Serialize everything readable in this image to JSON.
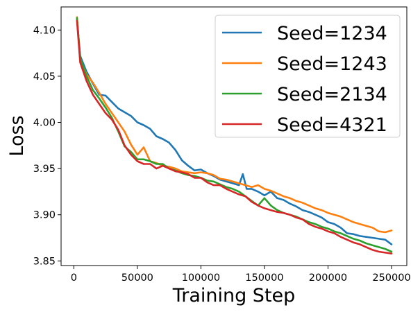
{
  "chart_data": {
    "type": "line",
    "title": "",
    "xlabel": "Training Step",
    "ylabel": "Loss",
    "xlim": [
      -10000,
      262000
    ],
    "ylim": [
      3.845,
      4.125
    ],
    "xticks": [
      0,
      50000,
      100000,
      150000,
      200000,
      250000
    ],
    "yticks": [
      3.85,
      3.9,
      3.95,
      4.0,
      4.05,
      4.1
    ],
    "ytick_labels": [
      "3.85",
      "3.90",
      "3.95",
      "4.00",
      "4.05",
      "4.10"
    ],
    "grid": false,
    "legend_position": "top-right",
    "series": [
      {
        "name": "Seed=1234",
        "color": "#1f77b4",
        "points": [
          [
            2500,
            4.112
          ],
          [
            5000,
            4.072
          ],
          [
            10000,
            4.055
          ],
          [
            15000,
            4.042
          ],
          [
            20000,
            4.03
          ],
          [
            25000,
            4.029
          ],
          [
            30000,
            4.022
          ],
          [
            35000,
            4.015
          ],
          [
            40000,
            4.011
          ],
          [
            45000,
            4.007
          ],
          [
            50000,
            4.0
          ],
          [
            55000,
            3.997
          ],
          [
            60000,
            3.993
          ],
          [
            65000,
            3.985
          ],
          [
            70000,
            3.982
          ],
          [
            75000,
            3.978
          ],
          [
            80000,
            3.97
          ],
          [
            85000,
            3.959
          ],
          [
            90000,
            3.953
          ],
          [
            95000,
            3.948
          ],
          [
            100000,
            3.949
          ],
          [
            105000,
            3.945
          ],
          [
            110000,
            3.942
          ],
          [
            115000,
            3.938
          ],
          [
            120000,
            3.936
          ],
          [
            125000,
            3.934
          ],
          [
            130000,
            3.932
          ],
          [
            133000,
            3.944
          ],
          [
            136000,
            3.928
          ],
          [
            140000,
            3.928
          ],
          [
            145000,
            3.925
          ],
          [
            150000,
            3.921
          ],
          [
            155000,
            3.925
          ],
          [
            160000,
            3.918
          ],
          [
            165000,
            3.916
          ],
          [
            170000,
            3.912
          ],
          [
            175000,
            3.909
          ],
          [
            180000,
            3.905
          ],
          [
            185000,
            3.903
          ],
          [
            190000,
            3.9
          ],
          [
            195000,
            3.897
          ],
          [
            200000,
            3.892
          ],
          [
            205000,
            3.89
          ],
          [
            210000,
            3.886
          ],
          [
            215000,
            3.88
          ],
          [
            220000,
            3.879
          ],
          [
            225000,
            3.877
          ],
          [
            230000,
            3.876
          ],
          [
            235000,
            3.875
          ],
          [
            240000,
            3.874
          ],
          [
            245000,
            3.873
          ],
          [
            250000,
            3.868
          ]
        ]
      },
      {
        "name": "Seed=1243",
        "color": "#ff7f0e",
        "points": [
          [
            2500,
            4.114
          ],
          [
            5000,
            4.068
          ],
          [
            10000,
            4.052
          ],
          [
            15000,
            4.043
          ],
          [
            20000,
            4.032
          ],
          [
            25000,
            4.02
          ],
          [
            30000,
            4.01
          ],
          [
            35000,
            4.0
          ],
          [
            40000,
            3.99
          ],
          [
            45000,
            3.976
          ],
          [
            50000,
            3.965
          ],
          [
            55000,
            3.973
          ],
          [
            60000,
            3.958
          ],
          [
            65000,
            3.956
          ],
          [
            70000,
            3.953
          ],
          [
            75000,
            3.952
          ],
          [
            80000,
            3.95
          ],
          [
            85000,
            3.947
          ],
          [
            90000,
            3.946
          ],
          [
            95000,
            3.945
          ],
          [
            100000,
            3.946
          ],
          [
            105000,
            3.945
          ],
          [
            110000,
            3.943
          ],
          [
            115000,
            3.939
          ],
          [
            120000,
            3.938
          ],
          [
            125000,
            3.936
          ],
          [
            130000,
            3.934
          ],
          [
            135000,
            3.932
          ],
          [
            140000,
            3.93
          ],
          [
            145000,
            3.932
          ],
          [
            150000,
            3.928
          ],
          [
            155000,
            3.926
          ],
          [
            160000,
            3.923
          ],
          [
            165000,
            3.92
          ],
          [
            170000,
            3.918
          ],
          [
            175000,
            3.915
          ],
          [
            180000,
            3.913
          ],
          [
            185000,
            3.91
          ],
          [
            190000,
            3.907
          ],
          [
            195000,
            3.905
          ],
          [
            200000,
            3.902
          ],
          [
            205000,
            3.9
          ],
          [
            210000,
            3.898
          ],
          [
            215000,
            3.895
          ],
          [
            220000,
            3.892
          ],
          [
            225000,
            3.89
          ],
          [
            230000,
            3.888
          ],
          [
            235000,
            3.886
          ],
          [
            240000,
            3.882
          ],
          [
            245000,
            3.881
          ],
          [
            250000,
            3.883
          ]
        ]
      },
      {
        "name": "Seed=2134",
        "color": "#2ca02c",
        "points": [
          [
            2500,
            4.113
          ],
          [
            5000,
            4.07
          ],
          [
            10000,
            4.05
          ],
          [
            15000,
            4.035
          ],
          [
            20000,
            4.026
          ],
          [
            25000,
            4.016
          ],
          [
            30000,
            4.005
          ],
          [
            35000,
            3.99
          ],
          [
            40000,
            3.974
          ],
          [
            45000,
            3.968
          ],
          [
            50000,
            3.96
          ],
          [
            55000,
            3.96
          ],
          [
            60000,
            3.958
          ],
          [
            65000,
            3.955
          ],
          [
            70000,
            3.955
          ],
          [
            75000,
            3.95
          ],
          [
            80000,
            3.948
          ],
          [
            85000,
            3.945
          ],
          [
            90000,
            3.943
          ],
          [
            95000,
            3.942
          ],
          [
            100000,
            3.94
          ],
          [
            105000,
            3.937
          ],
          [
            110000,
            3.936
          ],
          [
            115000,
            3.933
          ],
          [
            120000,
            3.93
          ],
          [
            125000,
            3.928
          ],
          [
            130000,
            3.925
          ],
          [
            135000,
            3.92
          ],
          [
            140000,
            3.915
          ],
          [
            145000,
            3.91
          ],
          [
            150000,
            3.918
          ],
          [
            155000,
            3.91
          ],
          [
            160000,
            3.905
          ],
          [
            165000,
            3.902
          ],
          [
            170000,
            3.9
          ],
          [
            175000,
            3.898
          ],
          [
            180000,
            3.895
          ],
          [
            185000,
            3.892
          ],
          [
            190000,
            3.89
          ],
          [
            195000,
            3.887
          ],
          [
            200000,
            3.885
          ],
          [
            205000,
            3.882
          ],
          [
            210000,
            3.88
          ],
          [
            215000,
            3.877
          ],
          [
            220000,
            3.874
          ],
          [
            225000,
            3.872
          ],
          [
            230000,
            3.869
          ],
          [
            235000,
            3.867
          ],
          [
            240000,
            3.865
          ],
          [
            245000,
            3.863
          ],
          [
            250000,
            3.86
          ]
        ]
      },
      {
        "name": "Seed=4321",
        "color": "#d62728",
        "points": [
          [
            2500,
            4.11
          ],
          [
            5000,
            4.065
          ],
          [
            10000,
            4.045
          ],
          [
            15000,
            4.03
          ],
          [
            20000,
            4.02
          ],
          [
            25000,
            4.01
          ],
          [
            30000,
            4.003
          ],
          [
            35000,
            3.992
          ],
          [
            40000,
            3.975
          ],
          [
            45000,
            3.965
          ],
          [
            50000,
            3.958
          ],
          [
            55000,
            3.955
          ],
          [
            60000,
            3.955
          ],
          [
            65000,
            3.95
          ],
          [
            70000,
            3.953
          ],
          [
            75000,
            3.95
          ],
          [
            80000,
            3.947
          ],
          [
            85000,
            3.946
          ],
          [
            90000,
            3.944
          ],
          [
            95000,
            3.94
          ],
          [
            100000,
            3.94
          ],
          [
            105000,
            3.935
          ],
          [
            110000,
            3.932
          ],
          [
            115000,
            3.932
          ],
          [
            120000,
            3.928
          ],
          [
            125000,
            3.925
          ],
          [
            130000,
            3.922
          ],
          [
            135000,
            3.92
          ],
          [
            140000,
            3.914
          ],
          [
            145000,
            3.91
          ],
          [
            150000,
            3.907
          ],
          [
            155000,
            3.905
          ],
          [
            160000,
            3.903
          ],
          [
            165000,
            3.902
          ],
          [
            170000,
            3.9
          ],
          [
            175000,
            3.897
          ],
          [
            180000,
            3.895
          ],
          [
            185000,
            3.89
          ],
          [
            190000,
            3.887
          ],
          [
            195000,
            3.885
          ],
          [
            200000,
            3.882
          ],
          [
            205000,
            3.88
          ],
          [
            210000,
            3.876
          ],
          [
            215000,
            3.873
          ],
          [
            220000,
            3.87
          ],
          [
            225000,
            3.868
          ],
          [
            230000,
            3.865
          ],
          [
            235000,
            3.862
          ],
          [
            240000,
            3.86
          ],
          [
            245000,
            3.859
          ],
          [
            250000,
            3.858
          ]
        ]
      }
    ]
  }
}
